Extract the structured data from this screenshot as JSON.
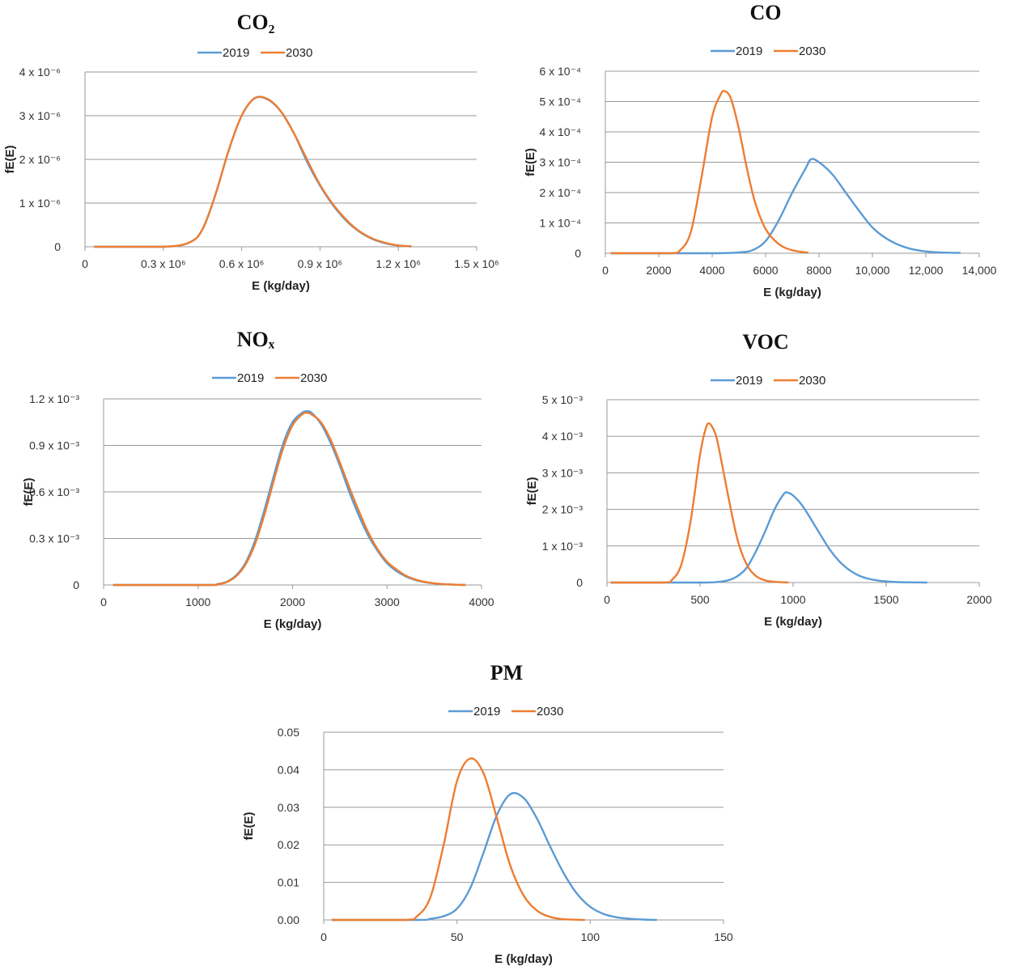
{
  "colors": {
    "s2019": "#5B9BD5",
    "s2030": "#ED7D31",
    "grid": "#999999"
  },
  "chart_data": [
    {
      "type": "line",
      "title": "CO₂",
      "xlabel": "E (kg/day)",
      "ylabel": "fE(E)",
      "xlim": [
        0,
        1500000
      ],
      "ylim": [
        0,
        4e-06
      ],
      "xticks": [
        {
          "v": 0,
          "label": "0"
        },
        {
          "v": 300000,
          "label": "0.3 x 10⁶"
        },
        {
          "v": 600000,
          "label": "0.6 x 10⁶"
        },
        {
          "v": 900000,
          "label": "0.9 x 10⁶"
        },
        {
          "v": 1200000,
          "label": "1.2 x 10⁶"
        },
        {
          "v": 1500000,
          "label": "1.5 x 10⁶"
        }
      ],
      "yticks": [
        {
          "v": 0,
          "label": "0"
        },
        {
          "v": 1e-06,
          "label": "1 x 10⁻⁶"
        },
        {
          "v": 2e-06,
          "label": "2 x 10⁻⁶"
        },
        {
          "v": 3e-06,
          "label": "3 x 10⁻⁶"
        },
        {
          "v": 4e-06,
          "label": "4 x 10⁻⁶"
        }
      ],
      "series": [
        {
          "name": "2019",
          "x": [
            35000,
            300000,
            400000,
            450000,
            500000,
            550000,
            600000,
            650000,
            700000,
            750000,
            800000,
            850000,
            900000,
            950000,
            1000000,
            1050000,
            1100000,
            1150000,
            1200000,
            1250000
          ],
          "y": [
            0,
            0,
            1e-07,
            4e-07,
            1.2e-06,
            2.2e-06,
            3e-06,
            3.4e-06,
            3.37e-06,
            3.1e-06,
            2.6e-06,
            1.95e-06,
            1.4e-06,
            9.5e-07,
            6e-07,
            3.5e-07,
            1.8e-07,
            8e-08,
            3e-08,
            1e-08
          ]
        },
        {
          "name": "2030",
          "x": [
            35000,
            300000,
            400000,
            450000,
            500000,
            550000,
            600000,
            650000,
            700000,
            750000,
            800000,
            850000,
            900000,
            950000,
            1000000,
            1050000,
            1100000,
            1150000,
            1200000,
            1250000
          ],
          "y": [
            0,
            0,
            1e-07,
            4e-07,
            1.2e-06,
            2.2e-06,
            3e-06,
            3.4e-06,
            3.38e-06,
            3.1e-06,
            2.6e-06,
            2e-06,
            1.42e-06,
            9.7e-07,
            6.2e-07,
            3.6e-07,
            1.9e-07,
            9e-08,
            3e-08,
            1e-08
          ]
        }
      ]
    },
    {
      "type": "line",
      "title": "CO",
      "xlabel": "E (kg/day)",
      "ylabel": "fE(E)",
      "xlim": [
        0,
        14000
      ],
      "ylim": [
        0,
        0.0006
      ],
      "xticks": [
        {
          "v": 0,
          "label": "0"
        },
        {
          "v": 2000,
          "label": "2000"
        },
        {
          "v": 4000,
          "label": "4000"
        },
        {
          "v": 6000,
          "label": "6000"
        },
        {
          "v": 8000,
          "label": "8000"
        },
        {
          "v": 10000,
          "label": "10,000"
        },
        {
          "v": 12000,
          "label": "12,000"
        },
        {
          "v": 14000,
          "label": "14,000"
        }
      ],
      "yticks": [
        {
          "v": 0,
          "label": "0"
        },
        {
          "v": 0.0001,
          "label": "1 x 10⁻⁴"
        },
        {
          "v": 0.0002,
          "label": "2 x 10⁻⁴"
        },
        {
          "v": 0.0003,
          "label": "3 x 10⁻⁴"
        },
        {
          "v": 0.0004,
          "label": "4 x 10⁻⁴"
        },
        {
          "v": 0.0005,
          "label": "5 x 10⁻⁴"
        },
        {
          "v": 0.0006,
          "label": "6 x 10⁻⁴"
        }
      ],
      "series": [
        {
          "name": "2019",
          "x": [
            200,
            4000,
            5000,
            5500,
            6000,
            6500,
            7000,
            7500,
            7700,
            8000,
            8500,
            9000,
            9500,
            10000,
            10500,
            11000,
            11500,
            12000,
            12500,
            13300
          ],
          "y": [
            0,
            0,
            3e-06,
            1e-05,
            4e-05,
            0.00011,
            0.0002,
            0.00028,
            0.00031,
            0.0003,
            0.00026,
            0.0002,
            0.00014,
            8.5e-05,
            5e-05,
            2.7e-05,
            1.3e-05,
            6e-06,
            3e-06,
            1e-06
          ]
        },
        {
          "name": "2030",
          "x": [
            200,
            2400,
            2800,
            3200,
            3600,
            4000,
            4300,
            4450,
            4700,
            5000,
            5300,
            5600,
            6000,
            6500,
            7000,
            7600
          ],
          "y": [
            0,
            0,
            1e-05,
            7e-05,
            0.00025,
            0.00045,
            0.00052,
            0.000535,
            0.00051,
            0.00041,
            0.00028,
            0.00017,
            8e-05,
            3e-05,
            1e-05,
            2e-06
          ]
        }
      ]
    },
    {
      "type": "line",
      "title": "NOₓ",
      "xlabel": "E (kg/day)",
      "ylabel": "fE(E)",
      "xlim": [
        0,
        4000
      ],
      "ylim": [
        0,
        0.0012
      ],
      "xticks": [
        {
          "v": 0,
          "label": "0"
        },
        {
          "v": 1000,
          "label": "1000"
        },
        {
          "v": 2000,
          "label": "2000"
        },
        {
          "v": 3000,
          "label": "3000"
        },
        {
          "v": 4000,
          "label": "4000"
        }
      ],
      "yticks": [
        {
          "v": 0,
          "label": "0"
        },
        {
          "v": 0.0003,
          "label": "0.3 x 10⁻³"
        },
        {
          "v": 0.0006,
          "label": "0.6 x 10⁻³"
        },
        {
          "v": 0.0009,
          "label": "0.9 x 10⁻³"
        },
        {
          "v": 0.0012,
          "label": "1.2 x 10⁻³"
        }
      ],
      "series": [
        {
          "name": "2019",
          "x": [
            100,
            1100,
            1200,
            1300,
            1400,
            1500,
            1600,
            1700,
            1800,
            1900,
            2000,
            2100,
            2150,
            2200,
            2300,
            2400,
            2500,
            2600,
            2700,
            2800,
            2900,
            3000,
            3100,
            3200,
            3300,
            3400,
            3500,
            3600,
            3700,
            3830
          ],
          "y": [
            0,
            0,
            5e-06,
            2e-05,
            6e-05,
            0.00014,
            0.00028,
            0.00048,
            0.0007,
            0.00091,
            0.00105,
            0.00111,
            0.00112,
            0.00111,
            0.00104,
            0.00092,
            0.00077,
            0.0006,
            0.00045,
            0.00032,
            0.00022,
            0.00014,
            9e-05,
            5.5e-05,
            3.2e-05,
            1.8e-05,
            1e-05,
            5e-06,
            2e-06,
            0
          ]
        },
        {
          "name": "2030",
          "x": [
            100,
            1100,
            1200,
            1300,
            1400,
            1500,
            1600,
            1700,
            1800,
            1900,
            2000,
            2100,
            2150,
            2200,
            2300,
            2400,
            2500,
            2600,
            2700,
            2800,
            2900,
            3000,
            3100,
            3200,
            3300,
            3400,
            3500,
            3600,
            3700,
            3830
          ],
          "y": [
            0,
            0,
            4e-06,
            1.8e-05,
            5.5e-05,
            0.00013,
            0.00026,
            0.00045,
            0.00067,
            0.00088,
            0.00103,
            0.0011,
            0.00111,
            0.0011,
            0.00105,
            0.00094,
            0.00079,
            0.00063,
            0.00048,
            0.00034,
            0.00023,
            0.00015,
            0.0001,
            6e-05,
            3.5e-05,
            2e-05,
            1.1e-05,
            6e-06,
            2e-06,
            0
          ]
        }
      ]
    },
    {
      "type": "line",
      "title": "VOC",
      "xlabel": "E (kg/day)",
      "ylabel": "fE(E)",
      "xlim": [
        0,
        2000
      ],
      "ylim": [
        0,
        0.005
      ],
      "xticks": [
        {
          "v": 0,
          "label": "0"
        },
        {
          "v": 500,
          "label": "500"
        },
        {
          "v": 1000,
          "label": "1000"
        },
        {
          "v": 1500,
          "label": "1500"
        },
        {
          "v": 2000,
          "label": "2000"
        }
      ],
      "yticks": [
        {
          "v": 0,
          "label": "0"
        },
        {
          "v": 0.001,
          "label": "1 x 10⁻³"
        },
        {
          "v": 0.002,
          "label": "2 x 10⁻³"
        },
        {
          "v": 0.003,
          "label": "3 x 10⁻³"
        },
        {
          "v": 0.004,
          "label": "4 x 10⁻³"
        },
        {
          "v": 0.005,
          "label": "5 x 10⁻³"
        }
      ],
      "series": [
        {
          "name": "2019",
          "x": [
            20,
            500,
            600,
            650,
            700,
            750,
            800,
            850,
            900,
            950,
            970,
            1000,
            1050,
            1100,
            1150,
            1200,
            1250,
            1300,
            1350,
            1400,
            1450,
            1500,
            1550,
            1600,
            1720
          ],
          "y": [
            0,
            0,
            2e-05,
            6e-05,
            0.00017,
            0.0004,
            0.00085,
            0.0014,
            0.002,
            0.00242,
            0.00246,
            0.00238,
            0.0021,
            0.0017,
            0.00128,
            0.00088,
            0.00057,
            0.00035,
            0.0002,
            0.00011,
            6e-05,
            3e-05,
            1.5e-05,
            7e-06,
            0
          ]
        },
        {
          "name": "2030",
          "x": [
            20,
            300,
            350,
            400,
            450,
            500,
            530,
            550,
            580,
            600,
            650,
            700,
            750,
            800,
            850,
            900,
            975
          ],
          "y": [
            0,
            0,
            8e-05,
            0.0005,
            0.0017,
            0.0035,
            0.0042,
            0.00435,
            0.0041,
            0.0037,
            0.0024,
            0.0012,
            0.0005,
            0.00018,
            6e-05,
            2e-05,
            0
          ]
        }
      ]
    },
    {
      "type": "line",
      "title": "PM",
      "xlabel": "E (kg/day)",
      "ylabel": "fE(E)",
      "xlim": [
        0,
        150
      ],
      "ylim": [
        0,
        0.05
      ],
      "xticks": [
        {
          "v": 0,
          "label": "0"
        },
        {
          "v": 50,
          "label": "50"
        },
        {
          "v": 100,
          "label": "100"
        },
        {
          "v": 150,
          "label": "150"
        }
      ],
      "yticks": [
        {
          "v": 0,
          "label": "0.00"
        },
        {
          "v": 0.01,
          "label": "0.01"
        },
        {
          "v": 0.02,
          "label": "0.02"
        },
        {
          "v": 0.03,
          "label": "0.03"
        },
        {
          "v": 0.04,
          "label": "0.04"
        },
        {
          "v": 0.05,
          "label": "0.05"
        }
      ],
      "series": [
        {
          "name": "2019",
          "x": [
            3,
            35,
            40,
            45,
            50,
            55,
            60,
            65,
            70,
            75,
            80,
            85,
            90,
            95,
            100,
            105,
            110,
            115,
            120,
            125
          ],
          "y": [
            0,
            0,
            0.0003,
            0.001,
            0.003,
            0.0085,
            0.018,
            0.028,
            0.0335,
            0.0325,
            0.027,
            0.0195,
            0.0125,
            0.007,
            0.0035,
            0.0016,
            0.0007,
            0.0003,
            0.0001,
            0
          ]
        },
        {
          "name": "2030",
          "x": [
            3,
            30,
            35,
            40,
            45,
            50,
            55,
            60,
            65,
            70,
            75,
            80,
            85,
            90,
            98
          ],
          "y": [
            0,
            0,
            0.001,
            0.006,
            0.02,
            0.037,
            0.043,
            0.039,
            0.027,
            0.0145,
            0.0065,
            0.0025,
            0.0008,
            0.0002,
            0
          ]
        }
      ]
    }
  ]
}
